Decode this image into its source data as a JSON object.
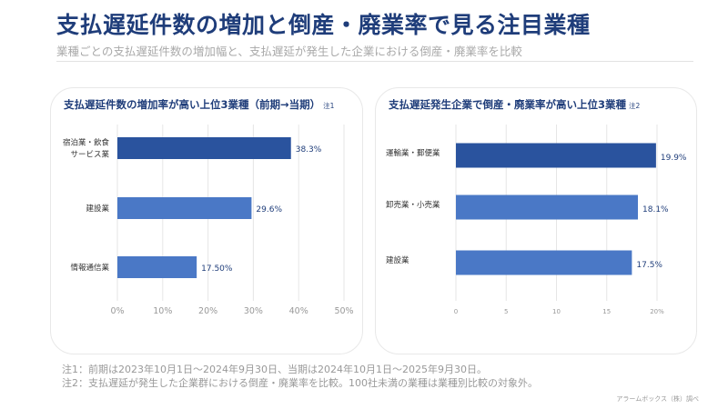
{
  "title": "支払遅延件数の増加と倒産・廃業率で見る注目業種",
  "subtitle": "業種ごとの支払遅延件数の増加幅と、支払遅延が発生した企業における倒産・廃業率を比較",
  "notes": [
    "注1：前期は2023年10月1日～2024年9月30日、当期は2024年10月1日～2025年9月30日。",
    "注2：支払遅延が発生した企業群における倒産・廃業率を比較。100社未満の業種は業種別比較の対象外。"
  ],
  "credit": "アラームボックス（株）調べ",
  "colors": {
    "title": "#1f3d7a",
    "bar_dark": "#2a539e",
    "bar": "#4a78c6"
  },
  "chart_data": [
    {
      "type": "bar",
      "orientation": "horizontal",
      "title": "支払遅延件数の増加率が高い上位3業種（前期→当期）",
      "title_note": "注1",
      "categories": [
        [
          "宿泊業・飲食",
          "サービス業"
        ],
        [
          "建設業"
        ],
        [
          "情報通信業"
        ]
      ],
      "values": [
        38.3,
        29.6,
        17.5
      ],
      "value_labels": [
        "38.3%",
        "29.6%",
        "17.50%"
      ],
      "xlim": [
        0,
        50
      ],
      "ticks": [
        0,
        10,
        20,
        30,
        40,
        50
      ],
      "tick_labels": [
        "0%",
        "10%",
        "20%",
        "30%",
        "40%",
        "50%"
      ],
      "grid": true
    },
    {
      "type": "bar",
      "orientation": "horizontal",
      "title": "支払遅延発生企業で倒産・廃業率が高い上位3業種",
      "title_note": "注2",
      "categories": [
        [
          "運輸業・郵便業"
        ],
        [
          "卸売業・小売業"
        ],
        [
          "建設業"
        ]
      ],
      "values": [
        19.9,
        18.1,
        17.5
      ],
      "value_labels": [
        "19.9%",
        "18.1%",
        "17.5%"
      ],
      "xlim": [
        0,
        20
      ],
      "ticks": [
        0,
        5,
        10,
        15,
        20
      ],
      "tick_labels": [
        "0",
        "5",
        "10",
        "15",
        "20%"
      ],
      "grid": true
    }
  ]
}
